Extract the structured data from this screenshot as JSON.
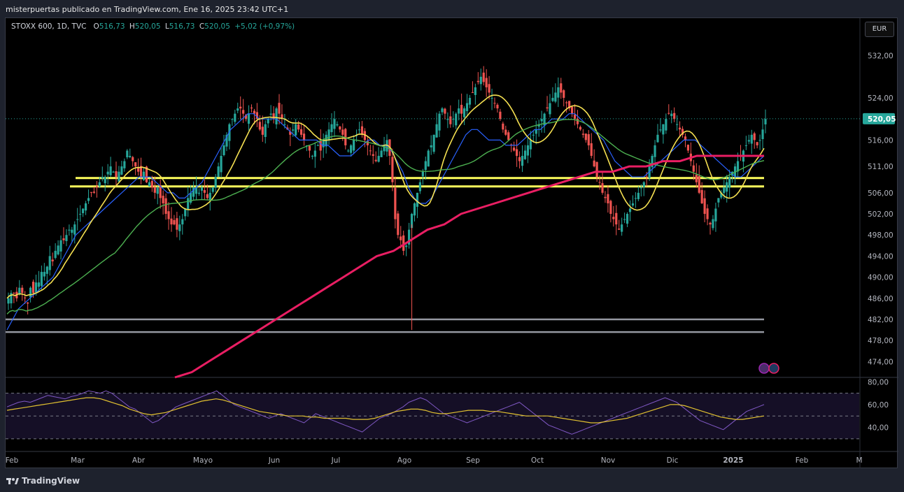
{
  "header": {
    "text": "misterpuertas publicado en TradingView.com, Ene 16, 2025 23:42 UTC+1"
  },
  "legend": {
    "symbol": "STOXX 600, 1D, TVC",
    "o_label": "O",
    "o_value": "516,73",
    "h_label": "H",
    "h_value": "520,05",
    "l_label": "L",
    "l_value": "516,73",
    "c_label": "C",
    "c_value": "520,05",
    "change": "+5,02 (+0,97%)"
  },
  "currency_button": "EUR",
  "footer": {
    "brand": "TradingView",
    "logo_icon": "tradingview-logo-icon"
  },
  "colors": {
    "up": "#26a69a",
    "down": "#ef5350",
    "ma_fast": "#2962ff",
    "ma_mid": "#f5e051",
    "ma_slow": "#4caf50",
    "ma_long": "#e91e63",
    "support_yellow": "#ffff5c",
    "support_gray": "#9598a1",
    "rsi": "#7e57c2",
    "rsi_ma": "#e0c030"
  },
  "chart_data": {
    "type": "candlestick",
    "title": "",
    "price_axis": {
      "ticks": [
        "532,00",
        "524,00",
        "516,00",
        "511,00",
        "506,00",
        "502,00",
        "498,00",
        "494,00",
        "490,00",
        "486,00",
        "482,00",
        "478,00",
        "474,00"
      ],
      "range": [
        471,
        535
      ],
      "last_price_label": "520,05",
      "last_price": 520.05
    },
    "time_axis": {
      "ticks": [
        "Feb",
        "Mar",
        "Abr",
        "Mayo",
        "Jun",
        "Jul",
        "Ago",
        "Sep",
        "Oct",
        "Nov",
        "Dic",
        "2025",
        "Feb",
        "M"
      ]
    },
    "horizontal_lines": [
      {
        "price": 508.8,
        "color": "yellow"
      },
      {
        "price": 507.2,
        "color": "yellow"
      },
      {
        "price": 482.0,
        "color": "gray"
      },
      {
        "price": 479.6,
        "color": "gray"
      }
    ],
    "closes_approx": [
      486,
      487,
      487,
      486,
      488,
      487,
      486,
      485,
      488,
      487,
      489,
      489,
      491,
      491,
      492,
      494,
      493,
      495,
      496,
      497,
      497,
      498,
      499,
      499,
      500,
      501,
      502,
      503,
      504,
      505,
      506,
      506,
      507,
      508,
      509,
      509,
      510,
      511,
      510,
      509,
      510,
      511,
      512,
      514,
      513,
      512,
      511,
      510,
      509,
      510,
      508,
      508,
      507,
      506,
      507,
      505,
      504,
      502,
      501,
      500,
      500,
      499,
      500,
      501,
      503,
      505,
      506,
      507,
      507,
      506,
      507,
      506,
      505,
      506,
      507,
      509,
      511,
      513,
      515,
      517,
      519,
      520,
      521,
      522,
      522,
      521,
      520,
      521,
      522,
      521,
      520,
      518,
      517,
      519,
      520,
      521,
      520,
      522,
      521,
      520,
      519,
      518,
      517,
      518,
      519,
      518,
      517,
      516,
      515,
      514,
      513,
      514,
      515,
      514,
      516,
      517,
      518,
      519,
      520,
      519,
      518,
      517,
      515,
      514,
      515,
      516,
      517,
      518,
      517,
      516,
      515,
      514,
      513,
      512,
      513,
      514,
      515,
      516,
      513,
      508,
      501,
      498,
      497,
      495,
      496,
      499,
      502,
      504,
      506,
      508,
      510,
      512,
      514,
      515,
      517,
      519,
      521,
      522,
      521,
      520,
      519,
      520,
      521,
      522,
      521,
      522,
      523,
      524,
      525,
      526,
      527,
      528,
      527,
      526,
      525,
      524,
      523,
      522,
      520,
      518,
      517,
      516,
      515,
      514,
      513,
      512,
      513,
      514,
      515,
      516,
      517,
      518,
      519,
      520,
      521,
      522,
      523,
      524,
      525,
      526,
      525,
      524,
      523,
      522,
      521,
      520,
      519,
      518,
      517,
      516,
      515,
      513,
      511,
      509,
      508,
      506,
      505,
      504,
      502,
      501,
      500,
      499,
      500,
      501,
      502,
      503,
      504,
      505,
      506,
      507,
      508,
      509,
      511,
      513,
      515,
      517,
      518,
      519,
      520,
      521,
      521,
      520,
      519,
      518,
      517,
      516,
      514,
      512,
      510,
      508,
      506,
      504,
      502,
      501,
      500,
      501,
      503,
      505,
      506,
      507,
      508,
      509,
      510,
      511,
      512,
      513,
      514,
      515,
      516,
      517,
      516,
      515,
      516,
      518,
      520
    ],
    "ma_fast_approx": [
      480,
      482,
      484,
      485,
      486,
      487,
      488,
      489,
      490,
      492,
      494,
      496,
      498,
      499,
      500,
      501,
      502,
      503,
      504,
      505,
      506,
      507,
      508,
      509,
      509,
      509,
      508,
      507,
      506,
      506,
      505,
      505,
      506,
      507,
      508,
      510,
      512,
      514,
      516,
      518,
      519,
      520,
      521,
      521,
      520,
      520,
      520,
      520,
      519,
      518,
      517,
      516,
      516,
      516,
      516,
      515,
      515,
      514,
      513,
      513,
      513,
      514,
      515,
      516,
      516,
      515,
      515,
      514,
      512,
      510,
      507,
      505,
      504,
      504,
      505,
      507,
      509,
      511,
      513,
      515,
      517,
      518,
      518,
      517,
      516,
      516,
      516,
      515,
      515,
      515,
      516,
      517,
      518,
      518,
      519,
      520,
      520,
      520,
      521,
      521,
      520,
      519,
      518,
      517,
      516,
      514,
      512,
      511,
      510,
      509,
      509,
      509,
      510,
      511,
      512,
      513,
      514,
      515,
      516,
      516,
      516,
      515,
      514,
      513,
      512,
      511,
      510,
      509,
      509,
      510,
      511,
      512,
      513
    ],
    "ma_long_approx": [
      471,
      472,
      474,
      476,
      478,
      480,
      482,
      484,
      486,
      488,
      490,
      492,
      494,
      495,
      497,
      499,
      500,
      502,
      503,
      504,
      505,
      506,
      507,
      508,
      509,
      510,
      510,
      511,
      511,
      512,
      512,
      513,
      513,
      513,
      513,
      513
    ],
    "rsi": {
      "axis_ticks": [
        "80,00",
        "60,00",
        "40,00"
      ],
      "range": [
        25,
        82
      ],
      "levels": [
        70,
        50,
        30
      ],
      "values_approx": [
        58,
        60,
        62,
        63,
        62,
        64,
        66,
        68,
        67,
        66,
        65,
        67,
        68,
        70,
        72,
        71,
        70,
        72,
        70,
        66,
        62,
        58,
        56,
        52,
        48,
        44,
        46,
        50,
        54,
        58,
        60,
        62,
        64,
        66,
        68,
        70,
        72,
        68,
        64,
        60,
        58,
        56,
        54,
        52,
        50,
        48,
        50,
        52,
        50,
        48,
        46,
        44,
        48,
        52,
        50,
        48,
        46,
        44,
        42,
        40,
        38,
        36,
        40,
        44,
        48,
        50,
        52,
        55,
        58,
        62,
        64,
        66,
        64,
        60,
        56,
        52,
        50,
        48,
        46,
        44,
        46,
        48,
        50,
        52,
        54,
        56,
        58,
        60,
        62,
        58,
        54,
        50,
        46,
        42,
        40,
        38,
        36,
        34,
        36,
        38,
        40,
        42,
        44,
        46,
        48,
        50,
        52,
        54,
        56,
        58,
        60,
        62,
        64,
        66,
        64,
        62,
        58,
        54,
        50,
        46,
        44,
        42,
        40,
        38,
        42,
        46,
        50,
        54,
        56,
        58,
        60
      ],
      "ma_values_approx": [
        55,
        56,
        57,
        58,
        59,
        60,
        61,
        62,
        63,
        64,
        65,
        66,
        66,
        65,
        63,
        61,
        59,
        56,
        54,
        52,
        51,
        52,
        53,
        55,
        57,
        59,
        61,
        63,
        64,
        65,
        64,
        62,
        60,
        58,
        56,
        54,
        53,
        52,
        51,
        50,
        50,
        50,
        49,
        49,
        48,
        48,
        48,
        48,
        47,
        47,
        47,
        48,
        50,
        52,
        54,
        55,
        56,
        56,
        55,
        53,
        52,
        52,
        53,
        54,
        55,
        55,
        55,
        54,
        54,
        53,
        52,
        51,
        50,
        50,
        50,
        50,
        49,
        48,
        47,
        46,
        45,
        44,
        44,
        45,
        46,
        47,
        48,
        50,
        52,
        54,
        56,
        58,
        60,
        60,
        59,
        57,
        55,
        53,
        51,
        49,
        48,
        47,
        47,
        48,
        49,
        50
      ]
    }
  }
}
